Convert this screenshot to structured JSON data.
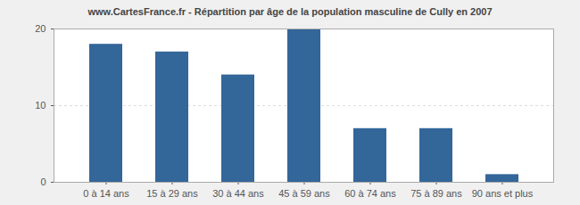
{
  "chart_data": {
    "type": "bar",
    "title": "www.CartesFrance.fr - Répartition par âge de la population masculine de Cully en 2007",
    "categories": [
      "0 à 14 ans",
      "15 à 29 ans",
      "30 à 44 ans",
      "45 à 59 ans",
      "60 à 74 ans",
      "75 à 89 ans",
      "90 ans et plus"
    ],
    "values": [
      18,
      17,
      14,
      20,
      7,
      7,
      1
    ],
    "color": "#336699",
    "ylim": [
      0,
      20
    ],
    "yticks": [
      0,
      10,
      20
    ],
    "grid": true
  }
}
